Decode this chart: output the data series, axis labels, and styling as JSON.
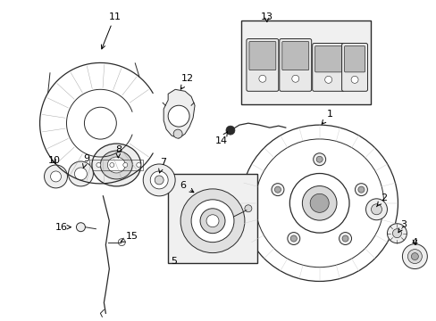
{
  "bg_color": "#ffffff",
  "fig_width": 4.89,
  "fig_height": 3.6,
  "dpi": 100,
  "line_color": "#2a2a2a",
  "gray_fill": "#d8d8d8",
  "light_fill": "#eeeeee",
  "hatch_color": "#888888"
}
